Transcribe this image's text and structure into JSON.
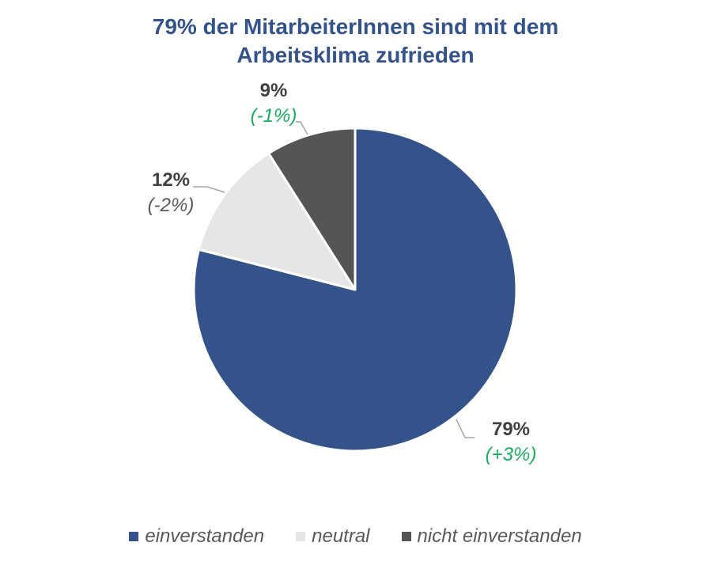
{
  "chart_data": {
    "type": "pie",
    "title_lines": [
      "79% der MitarbeiterInnen sind mit dem",
      "Arbeitsklima zufrieden"
    ],
    "slices": [
      {
        "name": "einverstanden",
        "value": 79,
        "label": "79%",
        "change": "(+3%)",
        "color": "#34538a",
        "change_color": "#1aab5f"
      },
      {
        "name": "neutral",
        "value": 12,
        "label": "12%",
        "change": "(-2%)",
        "color": "#e6e6e6",
        "change_color": "#595959"
      },
      {
        "name": "nicht einverstanden",
        "value": 9,
        "label": "9%",
        "change": "(-1%)",
        "color": "#555555",
        "change_color": "#1aab5f"
      }
    ],
    "legend_position": "bottom"
  }
}
